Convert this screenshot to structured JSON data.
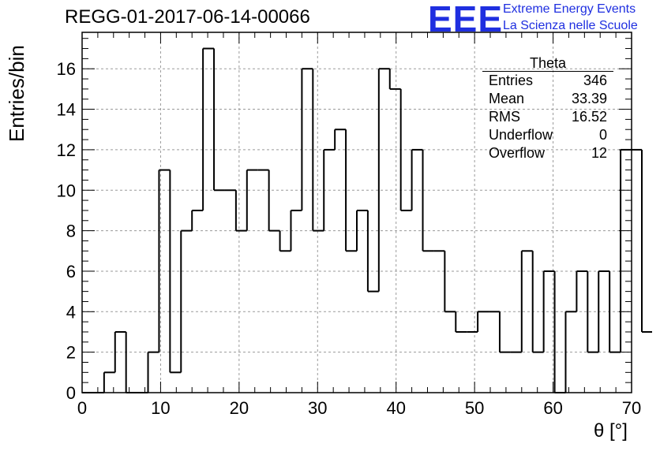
{
  "header": {
    "title": "REGG-01-2017-06-14-00066",
    "logo_text": "EEE",
    "logo_line1": "Extreme Energy Events",
    "logo_line2": "La Scienza nelle Scuole",
    "logo_color": "#1f2fe0"
  },
  "stats_box": {
    "name": "Theta",
    "rows": [
      {
        "label": "Entries",
        "value": "346"
      },
      {
        "label": "Mean",
        "value": "33.39"
      },
      {
        "label": "RMS",
        "value": "16.52"
      },
      {
        "label": "Underflow",
        "value": "0"
      },
      {
        "label": "Overflow",
        "value": "12"
      }
    ]
  },
  "chart_data": {
    "type": "bar",
    "style": "step-histogram",
    "xlabel": "θ [°]",
    "ylabel": "Entries/bin",
    "xlim": [
      0,
      70
    ],
    "ylim": [
      0,
      17.8
    ],
    "bin_width": 1.4,
    "x_ticks": [
      0,
      10,
      20,
      30,
      40,
      50,
      60,
      70
    ],
    "y_ticks": [
      0,
      2,
      4,
      6,
      8,
      10,
      12,
      14,
      16
    ],
    "grid": true,
    "values": [
      0,
      0,
      1,
      3,
      0,
      0,
      2,
      11,
      1,
      8,
      9,
      17,
      10,
      10,
      8,
      11,
      11,
      8,
      7,
      9,
      16,
      8,
      12,
      13,
      7,
      9,
      5,
      16,
      15,
      9,
      12,
      7,
      7,
      4,
      3,
      3,
      4,
      4,
      2,
      2,
      7,
      2,
      6,
      0,
      4,
      6,
      2,
      6,
      2,
      12
    ],
    "overflow_bin_value": 3
  }
}
